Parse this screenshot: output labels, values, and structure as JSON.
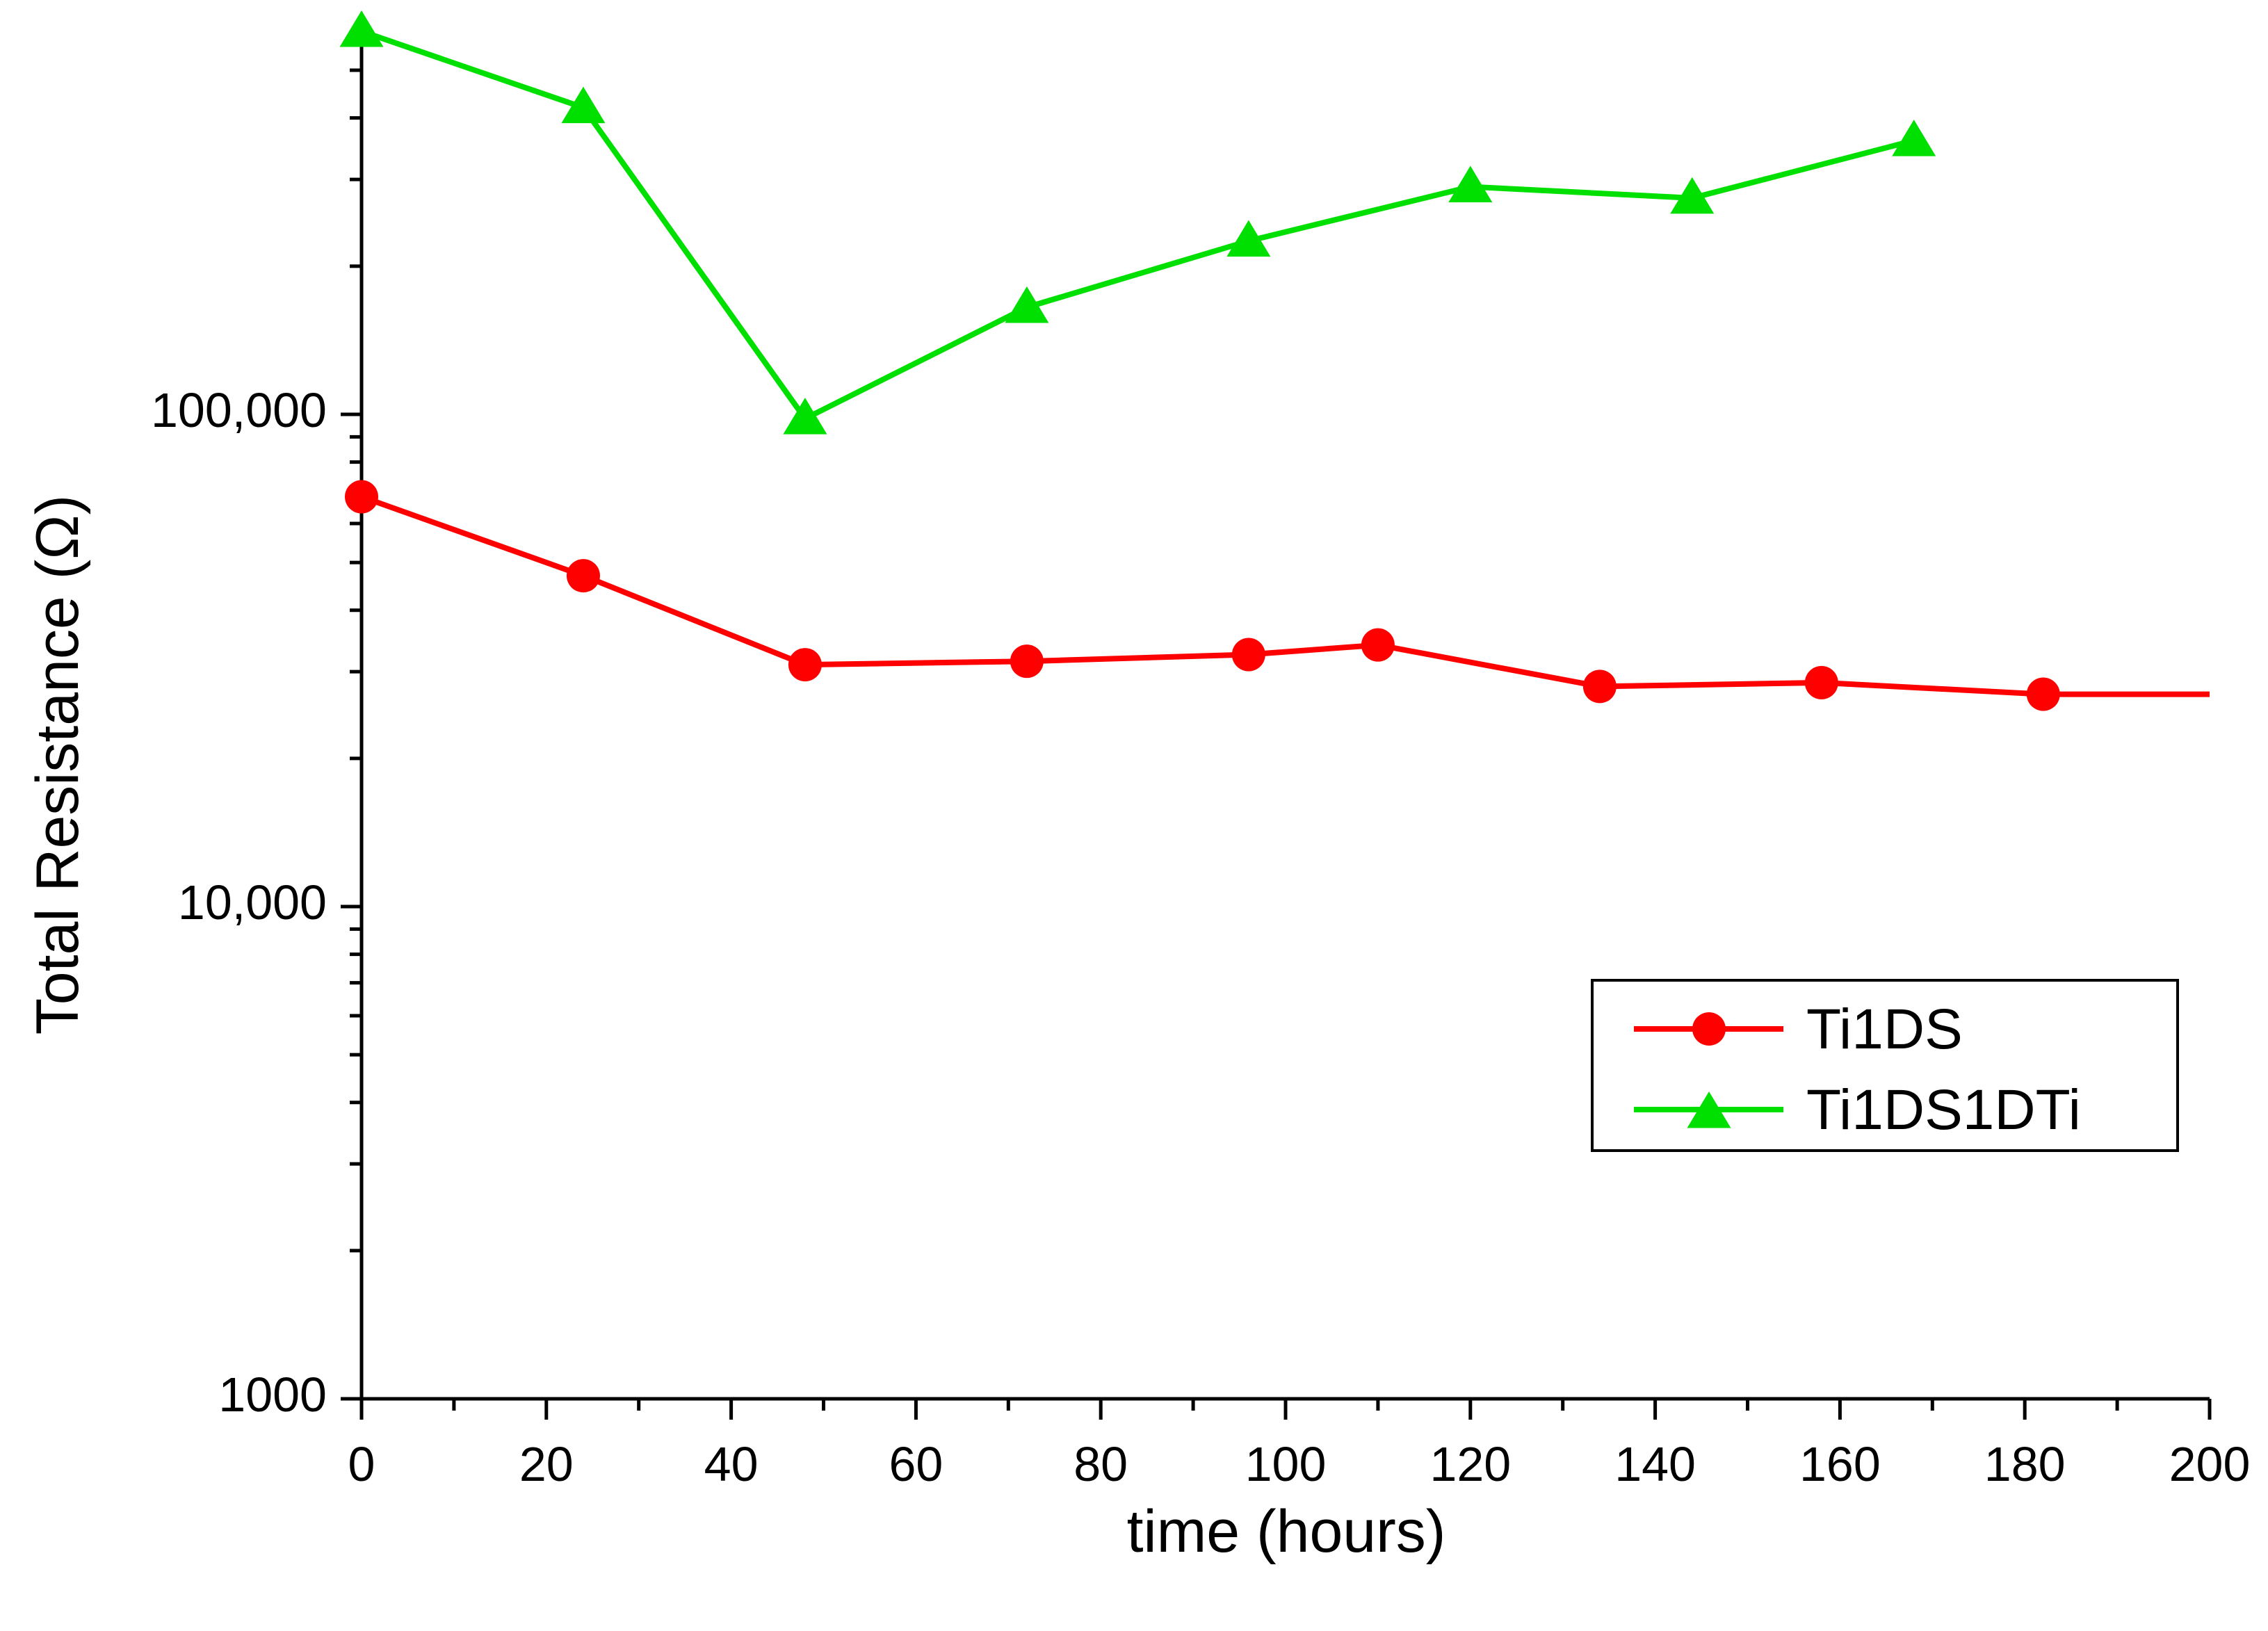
{
  "chart_data": {
    "type": "line",
    "title": "",
    "xlabel": "time (hours)",
    "ylabel": "Total Resistance (Ω)",
    "xlim": [
      0,
      200
    ],
    "ylim": [
      1000,
      600000
    ],
    "yscale": "log",
    "x_ticks": [
      0,
      20,
      40,
      60,
      80,
      100,
      120,
      140,
      160,
      180,
      200
    ],
    "x_tick_labels": [
      "0",
      "20",
      "40",
      "60",
      "80",
      "100",
      "120",
      "140",
      "160",
      "180",
      "200"
    ],
    "y_ticks": [
      1000,
      10000,
      100000
    ],
    "y_tick_labels": [
      "1000",
      "10,000",
      "100,000"
    ],
    "legend_position": "center-right",
    "series": [
      {
        "name": "Ti1DS",
        "color": "#ff0000",
        "marker": "circle",
        "x": [
          0,
          24,
          48,
          72,
          96,
          110,
          134,
          158,
          182,
          200
        ],
        "values": [
          68000,
          47000,
          31000,
          31500,
          32500,
          34000,
          28000,
          28500,
          27000,
          27000
        ],
        "marker_count": 9
      },
      {
        "name": "Ti1DS1DTi",
        "color": "#00e000",
        "marker": "triangle",
        "x": [
          0,
          24,
          48,
          72,
          96,
          120,
          144,
          168
        ],
        "values": [
          600000,
          420000,
          98000,
          165000,
          225000,
          290000,
          275000,
          360000
        ],
        "marker_count": 8
      }
    ]
  }
}
